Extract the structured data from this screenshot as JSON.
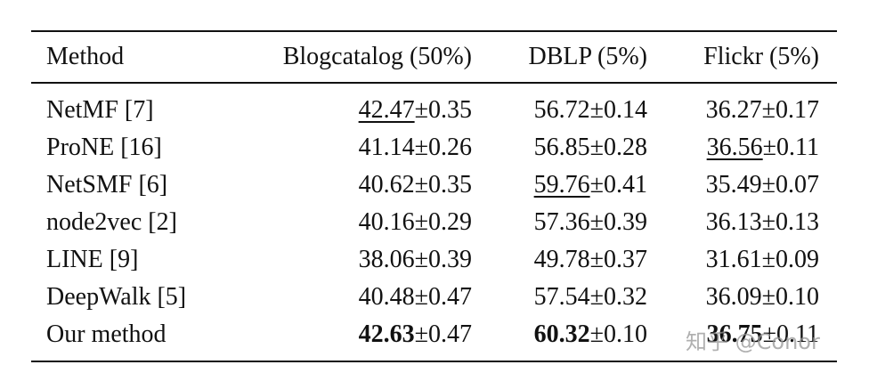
{
  "table": {
    "header": [
      "Method",
      "Blogcatalog (50%)",
      "DBLP (5%)",
      "Flickr (5%)"
    ],
    "rows": [
      {
        "method": "NetMF [7]",
        "cells": [
          {
            "main": "42.47",
            "pm": "±0.35",
            "emphasis": "underline"
          },
          {
            "main": "56.72",
            "pm": "±0.14",
            "emphasis": "plain"
          },
          {
            "main": "36.27",
            "pm": "±0.17",
            "emphasis": "plain"
          }
        ]
      },
      {
        "method": "ProNE [16]",
        "cells": [
          {
            "main": "41.14",
            "pm": "±0.26",
            "emphasis": "plain"
          },
          {
            "main": "56.85",
            "pm": "±0.28",
            "emphasis": "plain"
          },
          {
            "main": "36.56",
            "pm": "±0.11",
            "emphasis": "underline"
          }
        ]
      },
      {
        "method": "NetSMF [6]",
        "cells": [
          {
            "main": "40.62",
            "pm": "±0.35",
            "emphasis": "plain"
          },
          {
            "main": "59.76",
            "pm": "±0.41",
            "emphasis": "underline"
          },
          {
            "main": "35.49",
            "pm": "±0.07",
            "emphasis": "plain"
          }
        ]
      },
      {
        "method": "node2vec [2]",
        "cells": [
          {
            "main": "40.16",
            "pm": "±0.29",
            "emphasis": "plain"
          },
          {
            "main": "57.36",
            "pm": "±0.39",
            "emphasis": "plain"
          },
          {
            "main": "36.13",
            "pm": "±0.13",
            "emphasis": "plain"
          }
        ]
      },
      {
        "method": "LINE [9]",
        "cells": [
          {
            "main": "38.06",
            "pm": "±0.39",
            "emphasis": "plain"
          },
          {
            "main": "49.78",
            "pm": "±0.37",
            "emphasis": "plain"
          },
          {
            "main": "31.61",
            "pm": "±0.09",
            "emphasis": "plain"
          }
        ]
      },
      {
        "method": "DeepWalk [5]",
        "cells": [
          {
            "main": "40.48",
            "pm": "±0.47",
            "emphasis": "plain"
          },
          {
            "main": "57.54",
            "pm": "±0.32",
            "emphasis": "plain"
          },
          {
            "main": "36.09",
            "pm": "±0.10",
            "emphasis": "plain"
          }
        ]
      },
      {
        "method": "Our method",
        "cells": [
          {
            "main": "42.63",
            "pm": "±0.47",
            "emphasis": "bold"
          },
          {
            "main": "60.32",
            "pm": "±0.10",
            "emphasis": "bold"
          },
          {
            "main": "36.75",
            "pm": "±0.11",
            "emphasis": "bold"
          }
        ]
      }
    ]
  },
  "watermark": "知乎 @Conor"
}
